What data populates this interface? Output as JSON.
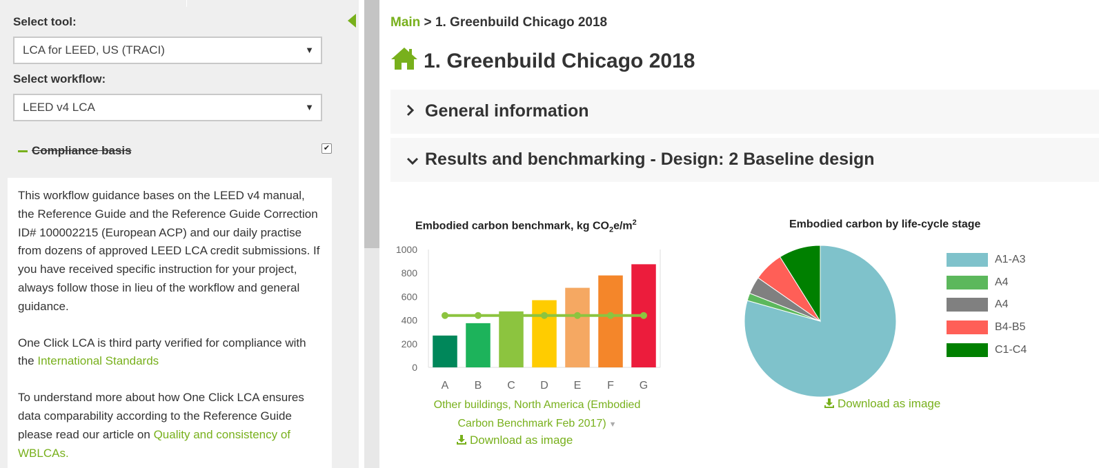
{
  "sidebar": {
    "select_tool_label": "Select tool:",
    "tool_value": "LCA for LEED, US (TRACI)",
    "select_workflow_label": "Select workflow:",
    "workflow_value": "LEED v4 LCA",
    "compliance_label": "Compliance basis",
    "compliance_checked": true,
    "guidance": {
      "p1": "This workflow guidance bases on the LEED v4 manual, the Reference Guide and the Reference Guide Correction ID# 100002215 (European ACP) and our daily practise from dozens of approved LEED LCA credit submissions. If you have received specific instruction for your project, always follow those in lieu of the workflow and general guidance.",
      "p2_text": "One Click LCA is third party verified for compliance with the ",
      "p2_link": "International Standards",
      "p3_text": "To understand more about how One Click LCA ensures data comparability according to the Reference Guide please read our article on ",
      "p3_link": "Quality and consistency of WBLCAs."
    }
  },
  "main": {
    "breadcrumb_link": "Main",
    "breadcrumb_sep": " > ",
    "breadcrumb_current": "1. Greenbuild Chicago 2018",
    "title": "1. Greenbuild Chicago 2018",
    "sections": [
      {
        "label": "General information",
        "expanded": false
      },
      {
        "label": "Results and benchmarking - Design: 2 Baseline design",
        "expanded": true
      }
    ],
    "benchmark_caption": "Other buildings, North America (Embodied Carbon Benchmark Feb 2017)",
    "download_label": "Download as image",
    "accent_color": "#78b01c"
  },
  "chart_data": [
    {
      "type": "bar",
      "title": "Embodied carbon benchmark, kg CO2e/m2",
      "categories": [
        "A",
        "B",
        "C",
        "D",
        "E",
        "F",
        "G"
      ],
      "values": [
        270,
        375,
        475,
        570,
        675,
        780,
        875
      ],
      "colors": [
        "#00875a",
        "#1db35b",
        "#8cc43f",
        "#ffcc00",
        "#f5a862",
        "#f4862a",
        "#ec1c3c"
      ],
      "line": {
        "value": 440,
        "color": "#8cc43f"
      },
      "ylim": [
        0,
        1000
      ],
      "yticks": [
        0,
        200,
        400,
        600,
        800,
        1000
      ],
      "grid": false
    },
    {
      "type": "pie",
      "title": "Embodied carbon by life-cycle stage",
      "labels": [
        "A1-A3",
        "A4",
        "A4",
        "B4-B5",
        "C1-C4"
      ],
      "values": [
        79.4,
        1.6,
        3.7,
        6.4,
        8.9
      ],
      "colors": [
        "#7fc2cb",
        "#5cb85c",
        "#808080",
        "#ff5f57",
        "#008000"
      ],
      "legend_position": "right"
    }
  ]
}
